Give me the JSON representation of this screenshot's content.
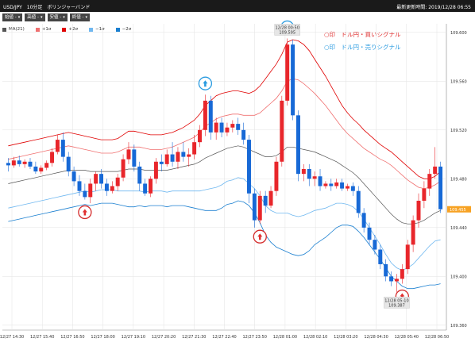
{
  "header": {
    "title": "USD/JPY　10分足　ボリンジャーバンド",
    "updated": "最新更新時間: 2019/12/28 06:55"
  },
  "ohlc": [
    {
      "label": "始値 -"
    },
    {
      "label": "高値 -"
    },
    {
      "label": "安値 -"
    },
    {
      "label": "終値 -"
    }
  ],
  "legend": [
    {
      "label": "MA(21)",
      "color": "#555555"
    },
    {
      "label": "+1σ",
      "color": "#f07070"
    },
    {
      "label": "+2σ",
      "color": "#e00000"
    },
    {
      "label": "−1σ",
      "color": "#70b8f0"
    },
    {
      "label": "−2σ",
      "color": "#1a7fd0"
    }
  ],
  "signals": {
    "buy": "○印　ドル円・買いシグナル",
    "sell": "○印　ドル円・売りシグナル"
  },
  "chart_data": {
    "type": "candlestick",
    "y_ticks": [
      "109.360",
      "109.400",
      "109.440",
      "109.480",
      "109.520",
      "109.560",
      "109.600"
    ],
    "ylim": [
      109.356,
      109.607
    ],
    "x_labels": [
      "12/27 14:30",
      "12/27 15:40",
      "12/27 16:50",
      "12/27 18:00",
      "12/27 19:10",
      "12/27 20:20",
      "12/27 21:30",
      "12/27 22:40",
      "12/27 23:50",
      "12/28 01:00",
      "12/28 02:10",
      "12/28 03:20",
      "12/28 04:30",
      "12/28 05:40",
      "12/28 06:50"
    ],
    "current_price": "109.455",
    "annotations": [
      {
        "time": "12/28 00:50",
        "value": "109.595"
      },
      {
        "time": "12/28 05:10",
        "value": "109.387"
      }
    ],
    "colors": {
      "up": "#e8262b",
      "down": "#1769d6",
      "ma": "#555555",
      "p1": "#f07070",
      "p2": "#e00000",
      "m1": "#70b8f0",
      "m2": "#1a7fd0"
    },
    "candles": [
      {
        "o": 109.493,
        "h": 109.497,
        "l": 109.486,
        "c": 109.491
      },
      {
        "o": 109.491,
        "h": 109.498,
        "l": 109.489,
        "c": 109.495
      },
      {
        "o": 109.495,
        "h": 109.499,
        "l": 109.49,
        "c": 109.492
      },
      {
        "o": 109.492,
        "h": 109.496,
        "l": 109.489,
        "c": 109.494
      },
      {
        "o": 109.494,
        "h": 109.497,
        "l": 109.488,
        "c": 109.49
      },
      {
        "o": 109.49,
        "h": 109.494,
        "l": 109.484,
        "c": 109.486
      },
      {
        "o": 109.486,
        "h": 109.491,
        "l": 109.484,
        "c": 109.489
      },
      {
        "o": 109.489,
        "h": 109.495,
        "l": 109.487,
        "c": 109.493
      },
      {
        "o": 109.493,
        "h": 109.505,
        "l": 109.49,
        "c": 109.502
      },
      {
        "o": 109.502,
        "h": 109.516,
        "l": 109.5,
        "c": 109.512
      },
      {
        "o": 109.512,
        "h": 109.518,
        "l": 109.494,
        "c": 109.498
      },
      {
        "o": 109.498,
        "h": 109.502,
        "l": 109.482,
        "c": 109.486
      },
      {
        "o": 109.486,
        "h": 109.49,
        "l": 109.474,
        "c": 109.478
      },
      {
        "o": 109.478,
        "h": 109.483,
        "l": 109.466,
        "c": 109.47
      },
      {
        "o": 109.47,
        "h": 109.476,
        "l": 109.463,
        "c": 109.465
      },
      {
        "o": 109.465,
        "h": 109.48,
        "l": 109.46,
        "c": 109.476
      },
      {
        "o": 109.476,
        "h": 109.486,
        "l": 109.47,
        "c": 109.484
      },
      {
        "o": 109.484,
        "h": 109.488,
        "l": 109.472,
        "c": 109.476
      },
      {
        "o": 109.476,
        "h": 109.48,
        "l": 109.466,
        "c": 109.47
      },
      {
        "o": 109.47,
        "h": 109.478,
        "l": 109.468,
        "c": 109.474
      },
      {
        "o": 109.474,
        "h": 109.484,
        "l": 109.47,
        "c": 109.481
      },
      {
        "o": 109.481,
        "h": 109.5,
        "l": 109.478,
        "c": 109.496
      },
      {
        "o": 109.496,
        "h": 109.51,
        "l": 109.492,
        "c": 109.504
      },
      {
        "o": 109.504,
        "h": 109.508,
        "l": 109.486,
        "c": 109.49
      },
      {
        "o": 109.49,
        "h": 109.494,
        "l": 109.47,
        "c": 109.476
      },
      {
        "o": 109.476,
        "h": 109.48,
        "l": 109.466,
        "c": 109.468
      },
      {
        "o": 109.468,
        "h": 109.482,
        "l": 109.465,
        "c": 109.48
      },
      {
        "o": 109.48,
        "h": 109.497,
        "l": 109.476,
        "c": 109.494
      },
      {
        "o": 109.494,
        "h": 109.5,
        "l": 109.486,
        "c": 109.492
      },
      {
        "o": 109.492,
        "h": 109.504,
        "l": 109.49,
        "c": 109.5
      },
      {
        "o": 109.5,
        "h": 109.51,
        "l": 109.49,
        "c": 109.494
      },
      {
        "o": 109.494,
        "h": 109.506,
        "l": 109.488,
        "c": 109.502
      },
      {
        "o": 109.502,
        "h": 109.51,
        "l": 109.494,
        "c": 109.498
      },
      {
        "o": 109.498,
        "h": 109.505,
        "l": 109.49,
        "c": 109.5
      },
      {
        "o": 109.5,
        "h": 109.516,
        "l": 109.496,
        "c": 109.51
      },
      {
        "o": 109.51,
        "h": 109.524,
        "l": 109.506,
        "c": 109.52
      },
      {
        "o": 109.52,
        "h": 109.549,
        "l": 109.515,
        "c": 109.544
      },
      {
        "o": 109.544,
        "h": 109.548,
        "l": 109.512,
        "c": 109.518
      },
      {
        "o": 109.518,
        "h": 109.53,
        "l": 109.512,
        "c": 109.526
      },
      {
        "o": 109.526,
        "h": 109.53,
        "l": 109.514,
        "c": 109.518
      },
      {
        "o": 109.518,
        "h": 109.526,
        "l": 109.515,
        "c": 109.522
      },
      {
        "o": 109.522,
        "h": 109.528,
        "l": 109.518,
        "c": 109.525
      },
      {
        "o": 109.525,
        "h": 109.53,
        "l": 109.516,
        "c": 109.52
      },
      {
        "o": 109.52,
        "h": 109.526,
        "l": 109.508,
        "c": 109.512
      },
      {
        "o": 109.512,
        "h": 109.516,
        "l": 109.46,
        "c": 109.468
      },
      {
        "o": 109.468,
        "h": 109.472,
        "l": 109.44,
        "c": 109.446
      },
      {
        "o": 109.446,
        "h": 109.47,
        "l": 109.443,
        "c": 109.466
      },
      {
        "o": 109.466,
        "h": 109.47,
        "l": 109.452,
        "c": 109.458
      },
      {
        "o": 109.458,
        "h": 109.474,
        "l": 109.456,
        "c": 109.47
      },
      {
        "o": 109.47,
        "h": 109.498,
        "l": 109.466,
        "c": 109.494
      },
      {
        "o": 109.494,
        "h": 109.548,
        "l": 109.49,
        "c": 109.544
      },
      {
        "o": 109.544,
        "h": 109.595,
        "l": 109.54,
        "c": 109.59
      },
      {
        "o": 109.59,
        "h": 109.594,
        "l": 109.528,
        "c": 109.532
      },
      {
        "o": 109.532,
        "h": 109.536,
        "l": 109.478,
        "c": 109.484
      },
      {
        "o": 109.484,
        "h": 109.492,
        "l": 109.478,
        "c": 109.488
      },
      {
        "o": 109.488,
        "h": 109.492,
        "l": 109.474,
        "c": 109.48
      },
      {
        "o": 109.48,
        "h": 109.486,
        "l": 109.474,
        "c": 109.482
      },
      {
        "o": 109.482,
        "h": 109.488,
        "l": 109.47,
        "c": 109.474
      },
      {
        "o": 109.474,
        "h": 109.478,
        "l": 109.472,
        "c": 109.476
      },
      {
        "o": 109.476,
        "h": 109.48,
        "l": 109.47,
        "c": 109.474
      },
      {
        "o": 109.474,
        "h": 109.48,
        "l": 109.472,
        "c": 109.477
      },
      {
        "o": 109.477,
        "h": 109.48,
        "l": 109.47,
        "c": 109.472
      },
      {
        "o": 109.472,
        "h": 109.476,
        "l": 109.47,
        "c": 109.474
      },
      {
        "o": 109.474,
        "h": 109.477,
        "l": 109.466,
        "c": 109.47
      },
      {
        "o": 109.47,
        "h": 109.474,
        "l": 109.448,
        "c": 109.452
      },
      {
        "o": 109.452,
        "h": 109.456,
        "l": 109.436,
        "c": 109.44
      },
      {
        "o": 109.44,
        "h": 109.444,
        "l": 109.426,
        "c": 109.43
      },
      {
        "o": 109.43,
        "h": 109.434,
        "l": 109.418,
        "c": 109.422
      },
      {
        "o": 109.422,
        "h": 109.426,
        "l": 109.406,
        "c": 109.41
      },
      {
        "o": 109.41,
        "h": 109.414,
        "l": 109.396,
        "c": 109.4
      },
      {
        "o": 109.4,
        "h": 109.404,
        "l": 109.392,
        "c": 109.396
      },
      {
        "o": 109.396,
        "h": 109.402,
        "l": 109.387,
        "c": 109.398
      },
      {
        "o": 109.398,
        "h": 109.41,
        "l": 109.394,
        "c": 109.406
      },
      {
        "o": 109.406,
        "h": 109.43,
        "l": 109.402,
        "c": 109.426
      },
      {
        "o": 109.426,
        "h": 109.45,
        "l": 109.42,
        "c": 109.446
      },
      {
        "o": 109.446,
        "h": 109.468,
        "l": 109.44,
        "c": 109.462
      },
      {
        "o": 109.462,
        "h": 109.478,
        "l": 109.456,
        "c": 109.472
      },
      {
        "o": 109.472,
        "h": 109.488,
        "l": 109.466,
        "c": 109.484
      },
      {
        "o": 109.484,
        "h": 109.506,
        "l": 109.48,
        "c": 109.49
      },
      {
        "o": 109.49,
        "h": 109.494,
        "l": 109.452,
        "c": 109.455
      }
    ],
    "ma": [
      109.476,
      109.477,
      109.478,
      109.479,
      109.48,
      109.481,
      109.482,
      109.483,
      109.484,
      109.485,
      109.486,
      109.487,
      109.487,
      109.487,
      109.487,
      109.486,
      109.486,
      109.486,
      109.486,
      109.486,
      109.486,
      109.487,
      109.488,
      109.488,
      109.488,
      109.487,
      109.487,
      109.487,
      109.487,
      109.487,
      109.488,
      109.489,
      109.49,
      109.491,
      109.492,
      109.494,
      109.497,
      109.499,
      109.501,
      109.503,
      109.505,
      109.506,
      109.507,
      109.506,
      109.504,
      109.502,
      109.5,
      109.498,
      109.498,
      109.499,
      109.502,
      109.506,
      109.506,
      109.505,
      109.504,
      109.503,
      109.502,
      109.5,
      109.498,
      109.496,
      109.494,
      109.491,
      109.488,
      109.485,
      109.481,
      109.476,
      109.471,
      109.466,
      109.461,
      109.456,
      109.451,
      109.447,
      109.444,
      109.443,
      109.443,
      109.444,
      109.446,
      109.449,
      109.452,
      109.454
    ],
    "p1": [
      109.496,
      109.497,
      109.498,
      109.499,
      109.5,
      109.501,
      109.502,
      109.503,
      109.504,
      109.505,
      109.506,
      109.507,
      109.506,
      109.505,
      109.504,
      109.503,
      109.502,
      109.501,
      109.501,
      109.501,
      109.502,
      109.504,
      109.506,
      109.506,
      109.506,
      109.505,
      109.504,
      109.504,
      109.504,
      109.505,
      109.506,
      109.508,
      109.51,
      109.512,
      109.514,
      109.518,
      109.523,
      109.526,
      109.529,
      109.531,
      109.532,
      109.533,
      109.533,
      109.532,
      109.532,
      109.532,
      109.534,
      109.538,
      109.542,
      109.546,
      109.552,
      109.56,
      109.562,
      109.561,
      109.558,
      109.554,
      109.55,
      109.545,
      109.54,
      109.534,
      109.528,
      109.522,
      109.517,
      109.513,
      109.509,
      109.505,
      109.502,
      109.499,
      109.496,
      109.494,
      109.491,
      109.487,
      109.483,
      109.479,
      109.476,
      109.473,
      109.472,
      109.473,
      109.475,
      109.478
    ],
    "p2": [
      109.507,
      109.508,
      109.509,
      109.51,
      109.511,
      109.512,
      109.513,
      109.514,
      109.515,
      109.516,
      109.517,
      109.518,
      109.517,
      109.516,
      109.515,
      109.514,
      109.513,
      109.512,
      109.512,
      109.512,
      109.513,
      109.516,
      109.519,
      109.519,
      109.518,
      109.517,
      109.516,
      109.516,
      109.516,
      109.517,
      109.518,
      109.52,
      109.522,
      109.525,
      109.528,
      109.533,
      109.54,
      109.544,
      109.548,
      109.55,
      109.551,
      109.552,
      109.552,
      109.551,
      109.55,
      109.552,
      109.556,
      109.562,
      109.568,
      109.574,
      109.582,
      109.592,
      109.594,
      109.593,
      109.59,
      109.585,
      109.578,
      109.571,
      109.564,
      109.556,
      109.548,
      109.54,
      109.534,
      109.529,
      109.525,
      109.52,
      109.516,
      109.512,
      109.508,
      109.505,
      109.502,
      109.498,
      109.494,
      109.49,
      109.486,
      109.482,
      109.48,
      109.48,
      109.482,
      109.486
    ],
    "m1": [
      109.456,
      109.457,
      109.458,
      109.459,
      109.46,
      109.461,
      109.462,
      109.463,
      109.464,
      109.465,
      109.466,
      109.467,
      109.468,
      109.469,
      109.47,
      109.469,
      109.47,
      109.471,
      109.471,
      109.471,
      109.47,
      109.47,
      109.47,
      109.47,
      109.47,
      109.469,
      109.47,
      109.47,
      109.47,
      109.469,
      109.47,
      109.47,
      109.47,
      109.47,
      109.47,
      109.47,
      109.471,
      109.472,
      109.473,
      109.475,
      109.478,
      109.479,
      109.481,
      109.48,
      109.476,
      109.472,
      109.466,
      109.458,
      109.454,
      109.452,
      109.452,
      109.452,
      109.45,
      109.449,
      109.45,
      109.452,
      109.454,
      109.455,
      109.456,
      109.458,
      109.46,
      109.46,
      109.459,
      109.457,
      109.453,
      109.447,
      109.44,
      109.433,
      109.426,
      109.418,
      109.411,
      109.407,
      109.405,
      109.407,
      109.41,
      109.415,
      109.42,
      109.425,
      109.429,
      109.43
    ],
    "m2": [
      109.445,
      109.446,
      109.447,
      109.448,
      109.449,
      109.45,
      109.451,
      109.452,
      109.453,
      109.454,
      109.455,
      109.456,
      109.457,
      109.458,
      109.459,
      109.458,
      109.459,
      109.46,
      109.46,
      109.46,
      109.459,
      109.458,
      109.457,
      109.457,
      109.458,
      109.457,
      109.458,
      109.458,
      109.458,
      109.457,
      109.458,
      109.458,
      109.458,
      109.457,
      109.456,
      109.455,
      109.454,
      109.454,
      109.454,
      109.456,
      109.459,
      109.46,
      109.462,
      109.461,
      109.458,
      109.452,
      109.444,
      109.434,
      109.428,
      109.424,
      109.422,
      109.42,
      109.418,
      109.417,
      109.418,
      109.421,
      109.426,
      109.429,
      109.432,
      109.436,
      109.44,
      109.442,
      109.442,
      109.441,
      109.437,
      109.432,
      109.426,
      109.42,
      109.414,
      109.407,
      109.4,
      109.396,
      109.392,
      109.39,
      109.39,
      109.391,
      109.392,
      109.393,
      109.393,
      109.394
    ],
    "buy_signals": [
      14,
      46,
      72
    ],
    "sell_signals": [
      36,
      51
    ]
  }
}
